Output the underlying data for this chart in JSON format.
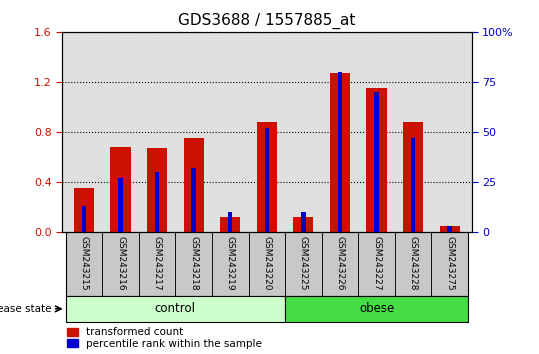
{
  "title": "GDS3688 / 1557885_at",
  "categories": [
    "GSM243215",
    "GSM243216",
    "GSM243217",
    "GSM243218",
    "GSM243219",
    "GSM243220",
    "GSM243225",
    "GSM243226",
    "GSM243227",
    "GSM243228",
    "GSM243275"
  ],
  "red_values": [
    0.35,
    0.68,
    0.67,
    0.75,
    0.12,
    0.88,
    0.12,
    1.27,
    1.15,
    0.88,
    0.05
  ],
  "blue_values": [
    13,
    27,
    30,
    32,
    10,
    52,
    10,
    80,
    70,
    47,
    3
  ],
  "ylim_left": [
    0,
    1.6
  ],
  "ylim_right": [
    0,
    100
  ],
  "yticks_left": [
    0,
    0.4,
    0.8,
    1.2,
    1.6
  ],
  "yticks_right": [
    0,
    25,
    50,
    75,
    100
  ],
  "ytick_labels_right": [
    "0",
    "25",
    "50",
    "75",
    "100%"
  ],
  "red_color": "#cc1100",
  "blue_color": "#0000cc",
  "red_bar_width": 0.55,
  "blue_bar_width": 0.12,
  "control_color_light": "#ccffcc",
  "control_color": "#77ee77",
  "obese_color": "#44dd44",
  "label_red": "transformed count",
  "label_blue": "percentile rank within the sample",
  "disease_state_label": "disease state",
  "control_label": "control",
  "obese_label": "obese",
  "title_fontsize": 11,
  "tick_label_fontsize": 7,
  "background_color": "#ffffff",
  "plot_bg_color": "#e0e0e0",
  "label_area_bg": "#c8c8c8",
  "n_control": 6,
  "n_obese": 5
}
